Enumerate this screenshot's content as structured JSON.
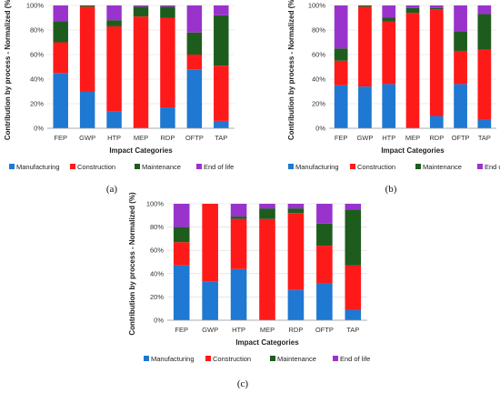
{
  "colors": {
    "Manufacturing": "#1f78d1",
    "Construction": "#ff1a1a",
    "Maintenance": "#1e5c1e",
    "End of life": "#9933cc"
  },
  "chart_data": [
    {
      "panel": "(a)",
      "type": "bar",
      "stacked": true,
      "xlabel": "Impact Categories",
      "ylabel": "Contribution by process - Normalized (%)",
      "ylim": [
        0,
        100
      ],
      "yticks": [
        "0%",
        "20%",
        "40%",
        "60%",
        "80%",
        "100%"
      ],
      "categories": [
        "FEP",
        "GWP",
        "HTP",
        "MEP",
        "RDP",
        "OFTP",
        "TAP"
      ],
      "legend_position": "bottom",
      "series": [
        {
          "name": "Manufacturing",
          "values": [
            45,
            30,
            14,
            0,
            17,
            48,
            6
          ]
        },
        {
          "name": "Construction",
          "values": [
            25,
            69,
            69,
            91,
            73,
            12,
            45
          ]
        },
        {
          "name": "Maintenance",
          "values": [
            17,
            1,
            5,
            8,
            9,
            18,
            41
          ]
        },
        {
          "name": "End of life",
          "values": [
            13,
            0,
            12,
            1,
            1,
            22,
            8
          ]
        }
      ]
    },
    {
      "panel": "(b)",
      "type": "bar",
      "stacked": true,
      "xlabel": "Impact Categories",
      "ylabel": "Contribution by process - Normalized (%)",
      "ylim": [
        0,
        100
      ],
      "yticks": [
        "0%",
        "20%",
        "40%",
        "60%",
        "80%",
        "100%"
      ],
      "categories": [
        "FEP",
        "GWP",
        "HTP",
        "MEP",
        "RDP",
        "OFTP",
        "TAP"
      ],
      "legend_position": "bottom",
      "series": [
        {
          "name": "Manufacturing",
          "values": [
            35,
            34,
            36,
            0,
            10,
            36,
            7
          ]
        },
        {
          "name": "Construction",
          "values": [
            20,
            65,
            51,
            94,
            87,
            27,
            57
          ]
        },
        {
          "name": "Maintenance",
          "values": [
            10,
            1,
            3,
            4,
            1,
            16,
            29
          ]
        },
        {
          "name": "End of life",
          "values": [
            35,
            0,
            10,
            2,
            2,
            21,
            7
          ]
        }
      ]
    },
    {
      "panel": "(c)",
      "type": "bar",
      "stacked": true,
      "xlabel": "Impact Categories",
      "ylabel": "Contribution by process - Normalized (%)",
      "ylim": [
        0,
        100
      ],
      "yticks": [
        "0%",
        "20%",
        "40%",
        "60%",
        "80%",
        "100%"
      ],
      "categories": [
        "FEP",
        "GWP",
        "HTP",
        "MEP",
        "RDP",
        "OFTP",
        "TAP"
      ],
      "legend_position": "bottom",
      "series": [
        {
          "name": "Manufacturing",
          "values": [
            47,
            33,
            44,
            0,
            26,
            32,
            9
          ]
        },
        {
          "name": "Construction",
          "values": [
            20,
            67,
            43,
            87,
            66,
            32,
            38
          ]
        },
        {
          "name": "Maintenance",
          "values": [
            13,
            0,
            2,
            9,
            4,
            19,
            48
          ]
        },
        {
          "name": "End of life",
          "values": [
            20,
            0,
            11,
            4,
            4,
            17,
            5
          ]
        }
      ]
    }
  ]
}
